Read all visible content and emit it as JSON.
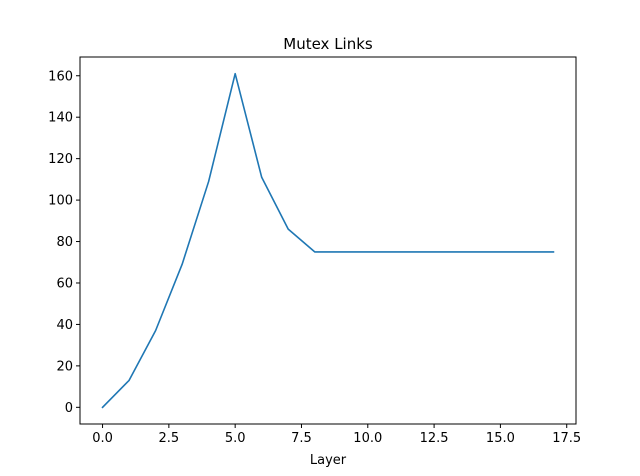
{
  "chart_data": {
    "type": "line",
    "title": "Mutex Links",
    "xlabel": "Layer",
    "ylabel": "",
    "xlim": [
      -0.85,
      17.85
    ],
    "ylim": [
      -8.05,
      169.05
    ],
    "xticks": [
      0.0,
      2.5,
      5.0,
      7.5,
      10.0,
      12.5,
      15.0,
      17.5
    ],
    "xtick_labels": [
      "0.0",
      "2.5",
      "5.0",
      "7.5",
      "10.0",
      "12.5",
      "15.0",
      "17.5"
    ],
    "yticks": [
      0,
      20,
      40,
      60,
      80,
      100,
      120,
      140,
      160
    ],
    "ytick_labels": [
      "0",
      "20",
      "40",
      "60",
      "80",
      "100",
      "120",
      "140",
      "160"
    ],
    "grid": false,
    "series": [
      {
        "color": "#1f77b4",
        "x": [
          0,
          1,
          2,
          3,
          4,
          5,
          6,
          7,
          8,
          9,
          10,
          11,
          12,
          13,
          14,
          15,
          16,
          17
        ],
        "y": [
          0,
          13,
          37,
          69,
          109,
          161,
          111,
          86,
          75,
          75,
          75,
          75,
          75,
          75,
          75,
          75,
          75,
          75
        ]
      }
    ]
  }
}
